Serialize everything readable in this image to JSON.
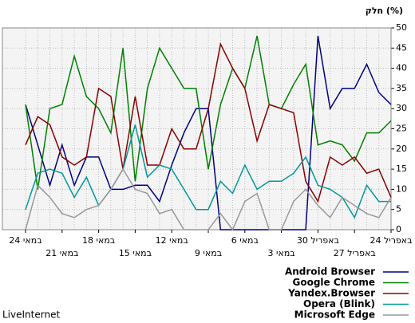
{
  "chart_data": {
    "type": "line",
    "y_label": "חלק (%)",
    "source": "LiveInternet",
    "categories": [
      "24 במאי",
      null,
      null,
      "21 במאי",
      null,
      null,
      "18 במאי",
      null,
      null,
      "15 במאי",
      null,
      null,
      "12 במאי",
      null,
      null,
      "9 במאי",
      null,
      null,
      "6 במאי",
      null,
      null,
      "3 במאי",
      null,
      null,
      "30 באפריל",
      null,
      null,
      "27 באפריל",
      null,
      null,
      "24 באפריל"
    ],
    "series": [
      {
        "name": "Android Browser",
        "color": "#000080",
        "values": [
          31,
          21,
          11,
          21,
          11,
          18,
          18,
          10,
          10,
          11,
          11,
          7,
          16,
          24,
          30,
          30,
          0,
          0,
          0,
          0,
          0,
          0,
          0,
          0,
          48,
          30,
          35,
          35,
          41,
          34,
          31
        ]
      },
      {
        "name": "Google Chrome",
        "color": "#008000",
        "values": [
          31,
          10,
          30,
          31,
          43,
          33,
          30,
          24,
          45,
          12,
          35,
          45,
          40,
          35,
          35,
          15,
          31,
          40,
          35,
          48,
          31,
          30,
          36,
          41,
          21,
          22,
          21,
          17,
          24,
          24,
          27
        ]
      },
      {
        "name": "Yandex.Browser",
        "color": "#8b0000",
        "values": [
          21,
          28,
          26,
          18,
          16,
          18,
          35,
          33,
          15,
          33,
          16,
          16,
          25,
          20,
          20,
          30,
          46,
          40,
          35,
          22,
          31,
          30,
          29,
          12,
          7,
          18,
          16,
          18,
          14,
          15,
          8
        ]
      },
      {
        "name": "Opera (Blink)",
        "color": "#009999",
        "values": [
          5,
          14,
          15,
          14,
          8,
          13,
          6,
          10,
          15,
          26,
          13,
          16,
          15,
          10,
          5,
          5,
          12,
          9,
          16,
          10,
          12,
          12,
          14,
          18,
          11,
          10,
          8,
          3,
          11,
          7,
          7
        ]
      },
      {
        "name": "Microsoft Edge",
        "color": "#999999",
        "values": [
          0,
          11,
          8,
          4,
          3,
          5,
          6,
          10,
          15,
          10,
          9,
          4,
          5,
          0,
          0,
          0,
          4,
          0,
          7,
          9,
          0,
          0,
          7,
          10,
          6,
          3,
          8,
          6,
          4,
          3,
          8
        ]
      }
    ],
    "ylim": [
      0,
      50
    ],
    "yticks": [
      0,
      5,
      10,
      15,
      20,
      25,
      30,
      35,
      40,
      45,
      50
    ],
    "grid": true
  }
}
